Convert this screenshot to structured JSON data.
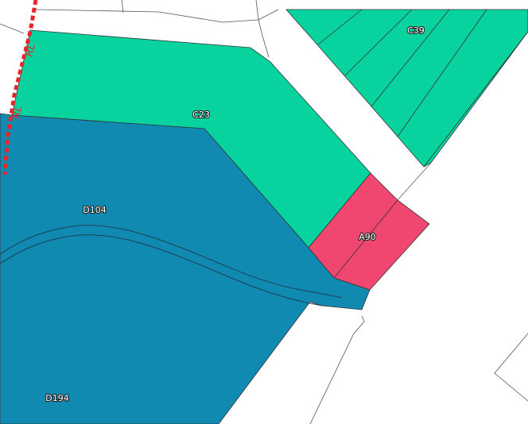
{
  "colors": {
    "zone_C": "#08d39f",
    "zone_D": "#118ab2",
    "zone_A": "#ef476f",
    "boundary": "#e8262a",
    "background": "#ffffff",
    "outline": "#333333"
  },
  "parcels": [
    {
      "id": "C39",
      "label": "C39",
      "zone": "C"
    },
    {
      "id": "C23",
      "label": "C23",
      "zone": "C"
    },
    {
      "id": "D104",
      "label": "D104",
      "zone": "D"
    },
    {
      "id": "A90",
      "label": "A90",
      "zone": "A"
    },
    {
      "id": "D194",
      "label": "D194",
      "zone": "D"
    }
  ],
  "boundary_line": {
    "labels": [
      "RL",
      "RL"
    ]
  }
}
